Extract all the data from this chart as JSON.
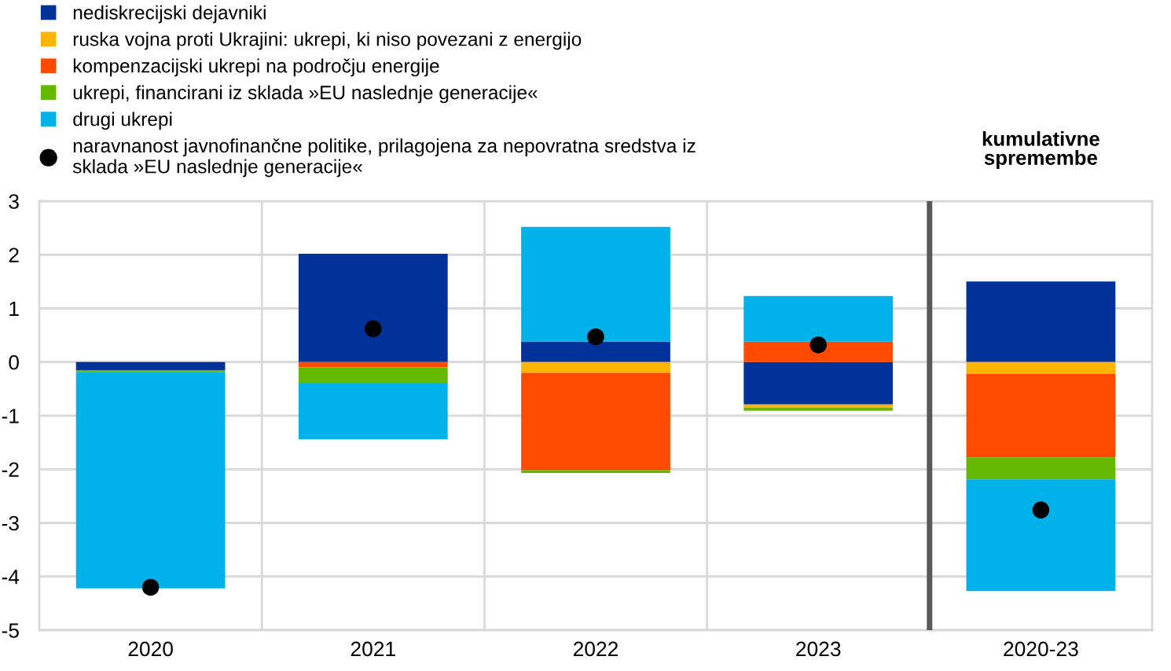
{
  "chart_data": {
    "type": "bar",
    "stacked": true,
    "categories": [
      "2020",
      "2021",
      "2022",
      "2023",
      "2020-23"
    ],
    "series": [
      {
        "name": "nediskrecijski dejavniki",
        "color": "#003299",
        "values": [
          -0.15,
          2.02,
          0.38,
          -0.79,
          1.5
        ]
      },
      {
        "name": "ruska vojna proti Ukrajini: ukrepi, ki niso povezani z energijo",
        "color": "#ffb400",
        "values": [
          null,
          null,
          -0.2,
          -0.06,
          -0.22
        ]
      },
      {
        "name": "kompenzacijski ukrepi na področju energije",
        "color": "#ff4b00",
        "values": [
          null,
          -0.1,
          -1.82,
          0.38,
          -1.56
        ]
      },
      {
        "name": "ukrepi, financirani iz sklada »EU naslednje generacije«",
        "color": "#65b800",
        "values": [
          -0.04,
          -0.3,
          -0.05,
          -0.06,
          -0.41
        ]
      },
      {
        "name": "drugi ukrepi",
        "color": "#00b1ea",
        "values": [
          -4.03,
          -1.04,
          2.14,
          0.85,
          -2.08
        ]
      },
      {
        "type": "scatter",
        "name": "naravnanost javnofinančne politike, prilagojena za nepovratna sredstva iz\nsklada »EU naslednje generacije«",
        "color": "#000000",
        "values": [
          -4.2,
          0.62,
          0.47,
          0.32,
          -2.76
        ]
      }
    ],
    "marker": "circle",
    "ylim": [
      -5,
      3
    ],
    "yticks": [
      -5,
      -4,
      -3,
      -2,
      -1,
      0,
      1,
      2,
      3
    ],
    "grid": true,
    "legend": "top left",
    "ref_lines": [
      {
        "axis": "x",
        "value": "2020-23",
        "color": "#595959"
      }
    ],
    "annotations": [
      "kumulativne\nspremembe"
    ]
  }
}
